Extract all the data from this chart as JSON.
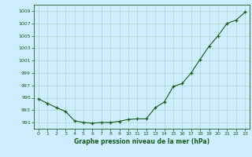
{
  "hours": [
    0,
    1,
    2,
    3,
    4,
    5,
    6,
    7,
    8,
    9,
    10,
    11,
    12,
    13,
    14,
    15,
    16,
    17,
    18,
    19,
    20,
    21,
    22,
    23
  ],
  "pressure": [
    994.8,
    994.1,
    993.4,
    992.8,
    991.3,
    991.0,
    990.9,
    991.0,
    991.0,
    991.2,
    991.5,
    991.6,
    991.6,
    993.4,
    994.3,
    996.8,
    997.3,
    999.0,
    1001.2,
    1003.3,
    1005.0,
    1007.0,
    1007.5,
    1008.8
  ],
  "line_color": "#1a5c1a",
  "marker_color": "#1a5c1a",
  "bg_color": "#cceeff",
  "grid_color": "#b0d8c8",
  "xlabel": "Graphe pression niveau de la mer (hPa)",
  "ylim": [
    990.0,
    1010.0
  ],
  "yticks": [
    991,
    993,
    995,
    997,
    999,
    1001,
    1003,
    1005,
    1007,
    1009
  ],
  "xlim": [
    -0.5,
    23.5
  ],
  "xticks": [
    0,
    1,
    2,
    3,
    4,
    5,
    6,
    7,
    8,
    9,
    10,
    11,
    12,
    13,
    14,
    15,
    16,
    17,
    18,
    19,
    20,
    21,
    22,
    23
  ]
}
